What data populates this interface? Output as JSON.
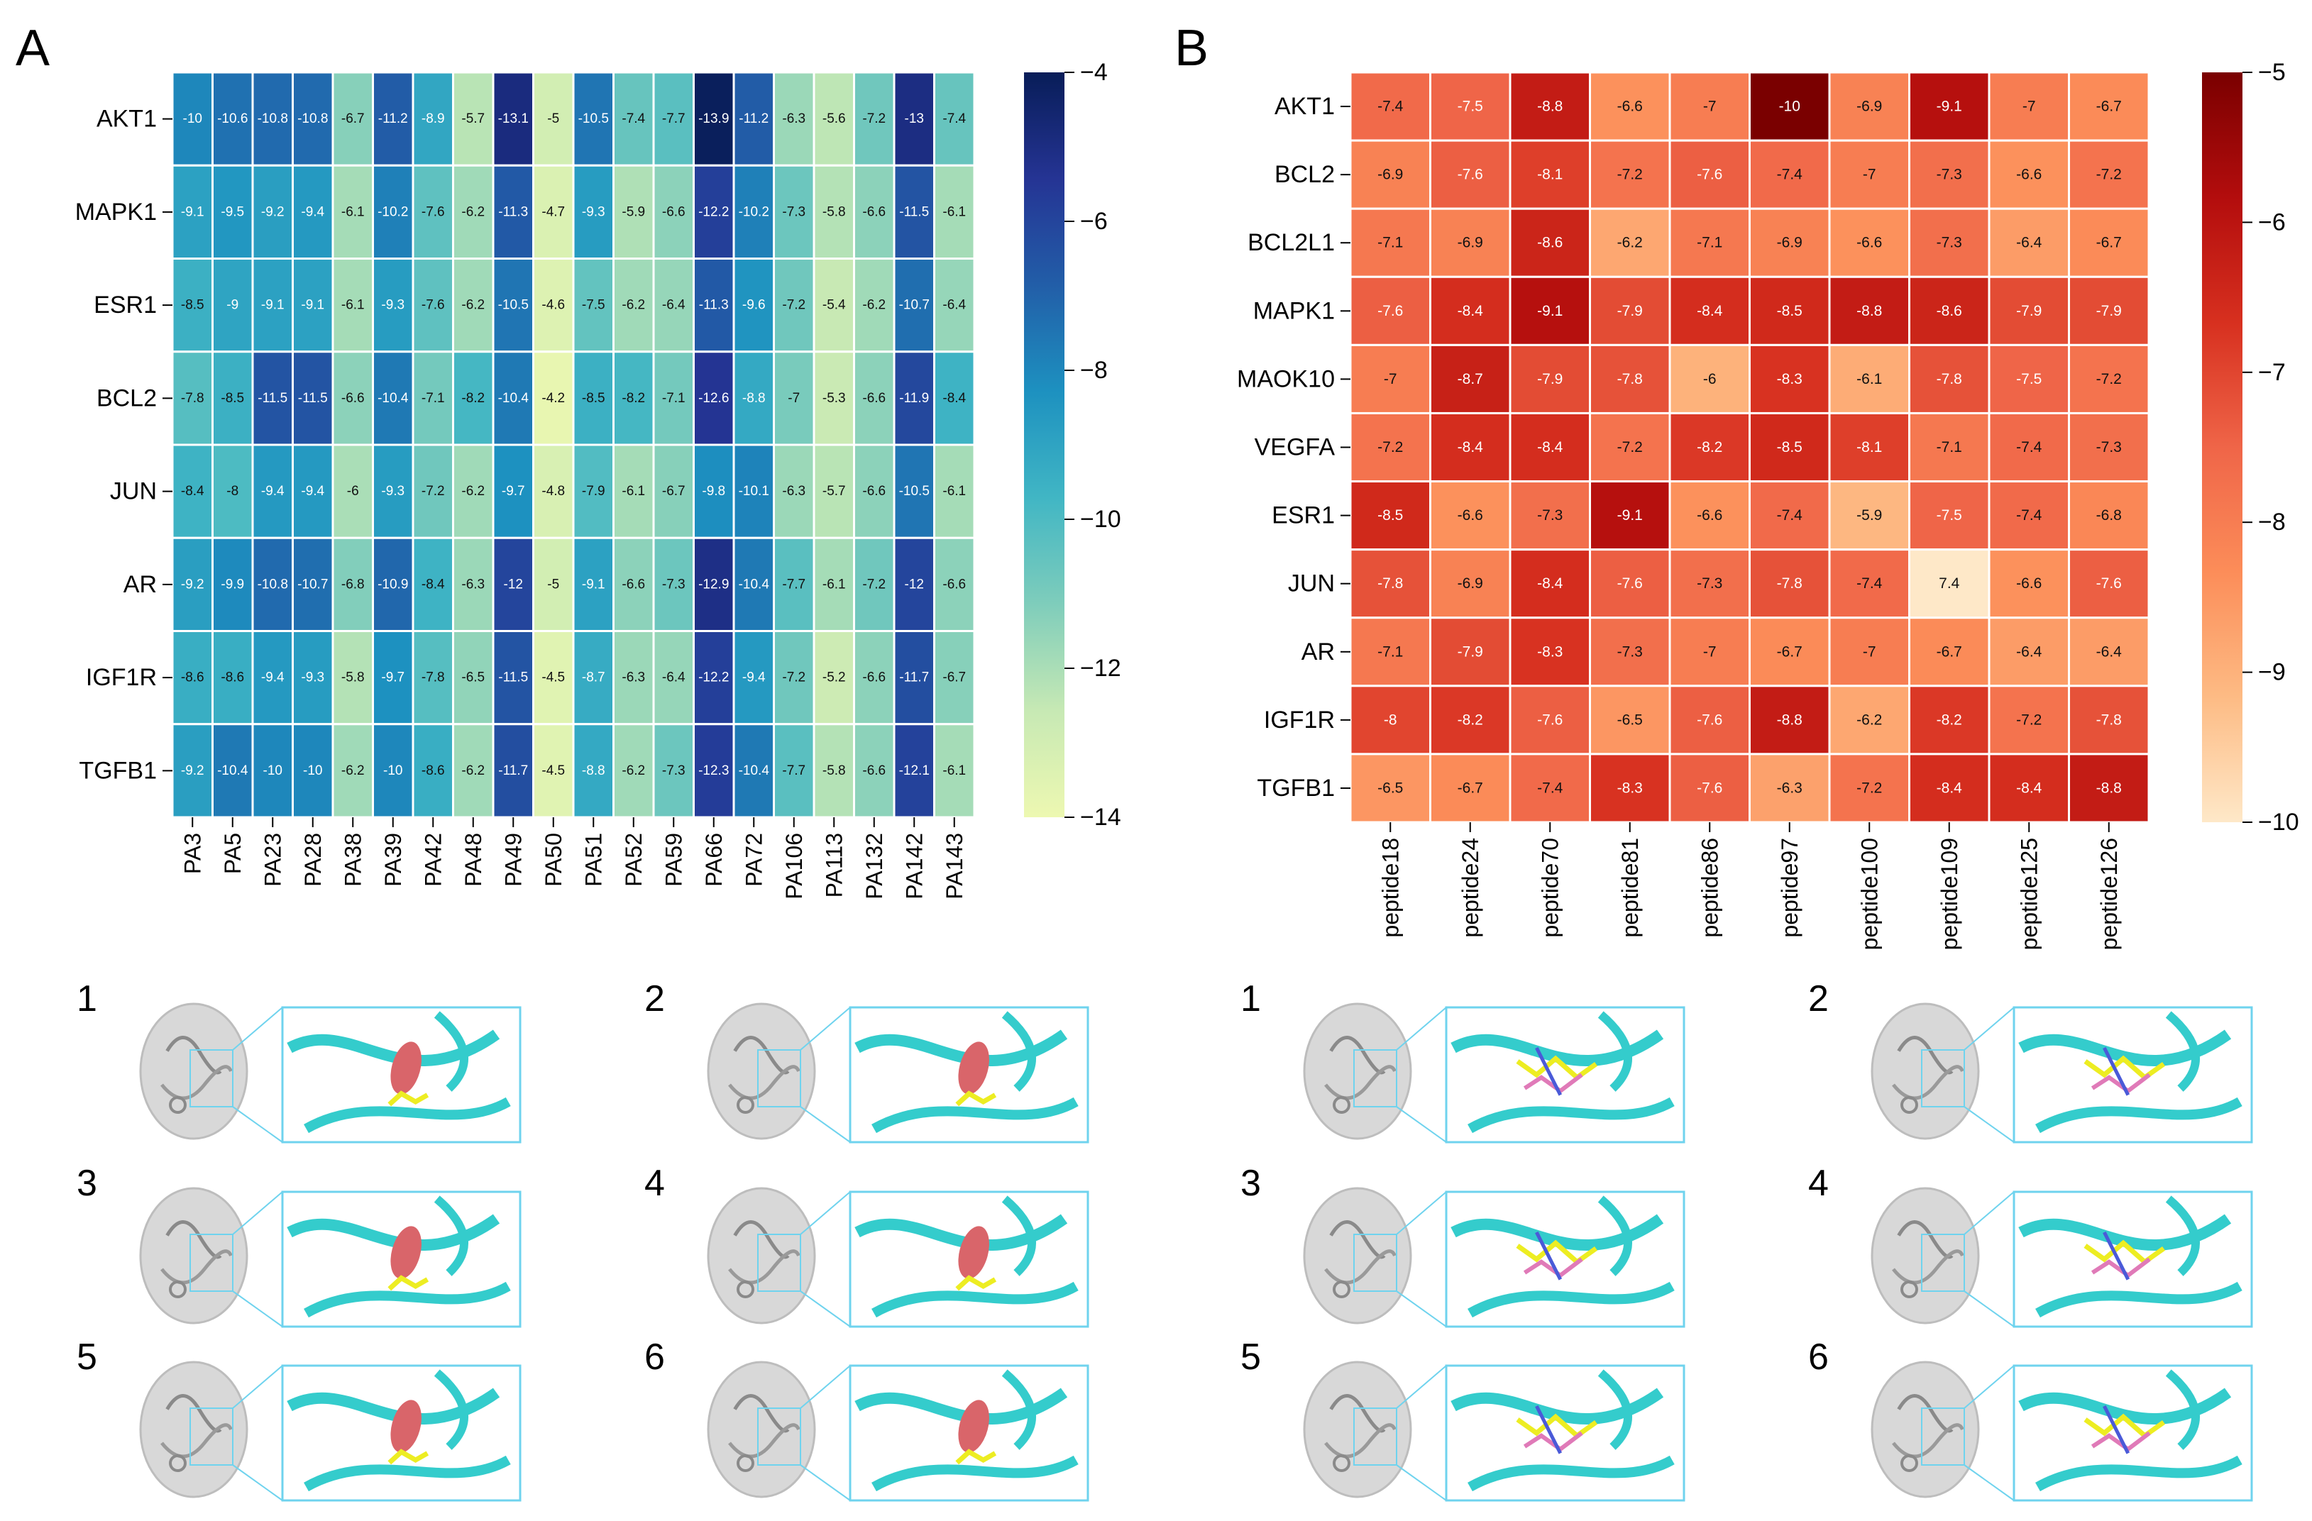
{
  "figure_panel_labels": {
    "a": "A",
    "b": "B"
  },
  "colors": {
    "a_scale": [
      "#081d58",
      "#253494",
      "#225ea8",
      "#1d91c0",
      "#41b6c4",
      "#7fcdbb",
      "#c7e9b4",
      "#edf8b1"
    ],
    "b_scale": [
      "#7a0000",
      "#b30d0d",
      "#d7301f",
      "#ef6548",
      "#fc8d59",
      "#fdbb84",
      "#fee8c8"
    ],
    "protein_cartoon": "#34cccc",
    "pocket": "#d9656a",
    "ligand": "#eded22",
    "zoom_frame": "#6fd3ee"
  },
  "chart_data": [
    {
      "id": "A",
      "type": "heatmap",
      "title": "",
      "xlabel": "",
      "ylabel": "",
      "rows": [
        "AKT1",
        "MAPK1",
        "ESR1",
        "BCL2",
        "JUN",
        "AR",
        "IGF1R",
        "TGFB1"
      ],
      "columns": [
        "PA3",
        "PA5",
        "PA23",
        "PA28",
        "PA38",
        "PA39",
        "PA42",
        "PA48",
        "PA49",
        "PA50",
        "PA51",
        "PA52",
        "PA59",
        "PA66",
        "PA72",
        "PA106",
        "PA113",
        "PA132",
        "PA142",
        "PA143"
      ],
      "values": [
        [
          -10,
          -10.6,
          -10.8,
          -10.8,
          -6.7,
          -11.2,
          -8.9,
          -5.7,
          -13.1,
          -5,
          -10.5,
          -7.4,
          -7.7,
          -13.9,
          -11.2,
          -6.3,
          -5.6,
          -7.2,
          -13,
          -7.4
        ],
        [
          -9.1,
          -9.5,
          -9.2,
          -9.4,
          -6.1,
          -10.2,
          -7.6,
          -6.2,
          -11.3,
          -4.7,
          -9.3,
          -5.9,
          -6.6,
          -12.2,
          -10.2,
          -7.3,
          -5.8,
          -6.6,
          -11.5,
          -6.1
        ],
        [
          -8.5,
          -9,
          -9.1,
          -9.1,
          -6.1,
          -9.3,
          -7.6,
          -6.2,
          -10.5,
          -4.6,
          -7.5,
          -6.2,
          -6.4,
          -11.3,
          -9.6,
          -7.2,
          -5.4,
          -6.2,
          -10.7,
          -6.4
        ],
        [
          -7.8,
          -8.5,
          -11.5,
          -11.5,
          -6.6,
          -10.4,
          -7.1,
          -8.2,
          -10.4,
          -4.2,
          -8.5,
          -8.2,
          -7.1,
          -12.6,
          -8.8,
          -7,
          -5.3,
          -6.6,
          -11.9,
          -8.4
        ],
        [
          -8.4,
          -8,
          -9.4,
          -9.4,
          -6,
          -9.3,
          -7.2,
          -6.2,
          -9.7,
          -4.8,
          -7.9,
          -6.1,
          -6.7,
          -9.8,
          -10.1,
          -6.3,
          -5.7,
          -6.6,
          -10.5,
          -6.1
        ],
        [
          -9.2,
          -9.9,
          -10.8,
          -10.7,
          -6.8,
          -10.9,
          -8.4,
          -6.3,
          -12,
          -5,
          -9.1,
          -6.6,
          -7.3,
          -12.9,
          -10.4,
          -7.7,
          -6.1,
          -7.2,
          -12,
          -6.6
        ],
        [
          -8.6,
          -8.6,
          -9.4,
          -9.3,
          -5.8,
          -9.7,
          -7.8,
          -6.5,
          -11.5,
          -4.5,
          -8.7,
          -6.3,
          -6.4,
          -12.2,
          -9.4,
          -7.2,
          -5.2,
          -6.6,
          -11.7,
          -6.7
        ],
        [
          -9.2,
          -10.4,
          -10,
          -10,
          -6.2,
          -10,
          -8.6,
          -6.2,
          -11.7,
          -4.5,
          -8.8,
          -6.2,
          -7.3,
          -12.3,
          -10.4,
          -7.7,
          -5.8,
          -6.6,
          -12.1,
          -6.1
        ]
      ],
      "color_range": [
        -14,
        -4
      ],
      "colorbar_ticks": [
        -4,
        -6,
        -8,
        -10,
        -12,
        -14
      ],
      "colorbar_tick_labels": [
        "−4",
        "−6",
        "−8",
        "−10",
        "−12",
        "−14"
      ],
      "colormap": "YlGnBu"
    },
    {
      "id": "B",
      "type": "heatmap",
      "title": "",
      "xlabel": "",
      "ylabel": "",
      "rows": [
        "AKT1",
        "BCL2",
        "BCL2L1",
        "MAPK1",
        "MAOK10",
        "VEGFA",
        "ESR1",
        "JUN",
        "AR",
        "IGF1R",
        "TGFB1"
      ],
      "columns": [
        "peptide18",
        "peptide24",
        "peptide70",
        "peptide81",
        "peptide86",
        "peptide97",
        "peptide100",
        "peptide109",
        "peptide125",
        "peptide126"
      ],
      "values": [
        [
          -7.4,
          -7.5,
          -8.8,
          -6.6,
          -7,
          -10,
          -6.9,
          -9.1,
          -7,
          -6.7
        ],
        [
          -6.9,
          -7.6,
          -8.1,
          -7.2,
          -7.6,
          -7.4,
          -7,
          -7.3,
          -6.6,
          -7.2
        ],
        [
          -7.1,
          -6.9,
          -8.6,
          -6.2,
          -7.1,
          -6.9,
          -6.6,
          -7.3,
          -6.4,
          -6.7
        ],
        [
          -7.6,
          -8.4,
          -9.1,
          -7.9,
          -8.4,
          -8.5,
          -8.8,
          -8.6,
          -7.9,
          -7.9
        ],
        [
          -7,
          -8.7,
          -7.9,
          -7.8,
          -6,
          -8.3,
          -6.1,
          -7.8,
          -7.5,
          -7.2
        ],
        [
          -7.2,
          -8.4,
          -8.4,
          -7.2,
          -8.2,
          -8.5,
          -8.1,
          -7.1,
          -7.4,
          -7.3
        ],
        [
          -8.5,
          -6.6,
          -7.3,
          -9.1,
          -6.6,
          -7.4,
          -5.9,
          -7.5,
          -7.4,
          -6.8
        ],
        [
          -7.8,
          -6.9,
          -8.4,
          -7.6,
          -7.3,
          -7.8,
          -7.4,
          7.4,
          -6.6,
          -7.6
        ],
        [
          -7.1,
          -7.9,
          -8.3,
          -7.3,
          -7,
          -6.7,
          -7,
          -6.7,
          -6.4,
          -6.4
        ],
        [
          -8,
          -8.2,
          -7.6,
          -6.5,
          -7.6,
          -8.8,
          -6.2,
          -8.2,
          -7.2,
          -7.8
        ],
        [
          -6.5,
          -6.7,
          -7.4,
          -8.3,
          -7.6,
          -6.3,
          -7.2,
          -8.4,
          -8.4,
          -8.8
        ]
      ],
      "color_range": [
        -10,
        -5
      ],
      "colorbar_ticks": [
        -5,
        -6,
        -7,
        -8,
        -9,
        -10
      ],
      "colorbar_tick_labels": [
        "−5",
        "−6",
        "−7",
        "−8",
        "−9",
        "−10"
      ],
      "colormap": "OrRd_r"
    }
  ],
  "docking_panels": {
    "A": [
      {
        "label": "1"
      },
      {
        "label": "2"
      },
      {
        "label": "3"
      },
      {
        "label": "4"
      },
      {
        "label": "5"
      },
      {
        "label": "6"
      }
    ],
    "B": [
      {
        "label": "1"
      },
      {
        "label": "2"
      },
      {
        "label": "3"
      },
      {
        "label": "4"
      },
      {
        "label": "5"
      },
      {
        "label": "6"
      }
    ]
  }
}
